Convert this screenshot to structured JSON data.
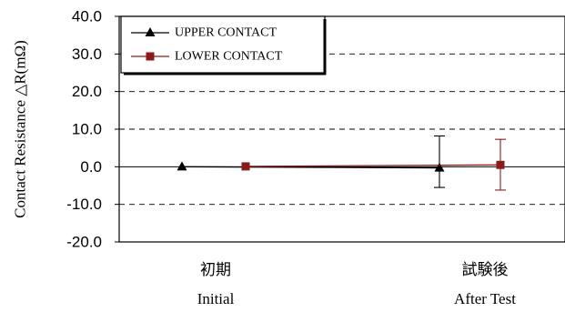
{
  "chart_data": {
    "type": "line",
    "ylabel": "Contact Resistance △R(mΩ)",
    "ylim": [
      -20,
      40
    ],
    "yticks": [
      40,
      30,
      20,
      10,
      0,
      -10,
      -20
    ],
    "ytick_labels": [
      "40.0",
      "30.0",
      "20.0",
      "10.0",
      "0.0",
      "-10.0",
      "-20.0"
    ],
    "grid": "horizontal dashed",
    "legend_position": "top-left",
    "categories": [
      {
        "jp": "初期",
        "en": "Initial"
      },
      {
        "jp": "試験後",
        "en": "After Test"
      }
    ],
    "series": [
      {
        "name": "UPPER CONTACT",
        "color": "#000000",
        "marker": "triangle",
        "values": [
          0.0,
          -0.3
        ],
        "error_low": [
          null,
          -5.5
        ],
        "error_high": [
          null,
          8.2
        ]
      },
      {
        "name": "LOWER CONTACT",
        "color": "#8b1a1a",
        "marker": "square",
        "values": [
          0.1,
          0.5
        ],
        "error_low": [
          null,
          -6.2
        ],
        "error_high": [
          null,
          7.3
        ]
      }
    ]
  }
}
